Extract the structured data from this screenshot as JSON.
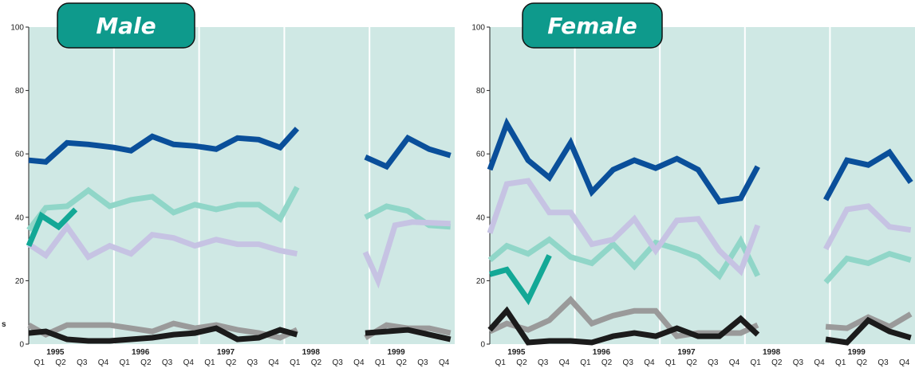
{
  "edge_label": "s",
  "colors": {
    "background": "#cfe8e4",
    "badge": "#0e9a8c",
    "separator": "#ffffff",
    "series": [
      "#0a4f9a",
      "#90d6c8",
      "#c6c3e3",
      "#13a896",
      "#9a9a9a",
      "#1b1b1b"
    ]
  },
  "chart_data": [
    {
      "type": "line",
      "title": "Male",
      "ylim": [
        0,
        100
      ],
      "yticks": [
        "0",
        "20",
        "40",
        "60",
        "80",
        "100"
      ],
      "quarters": [
        "Q1",
        "Q2",
        "Q3",
        "Q4",
        "Q1",
        "Q2",
        "Q3",
        "Q4",
        "Q1",
        "Q2",
        "Q3",
        "Q4",
        "Q1",
        "Q2",
        "Q3",
        "Q4",
        "Q1",
        "Q2",
        "Q3",
        "Q4"
      ],
      "years": [
        "1995",
        "1996",
        "1997",
        "1998",
        "1999"
      ],
      "x_start": 1995,
      "x_end": 2000,
      "grid": false,
      "series": [
        {
          "values": [
            [
              1995.0,
              58
            ],
            [
              1995.2,
              57.5
            ],
            [
              1995.45,
              63.5
            ],
            [
              1995.7,
              63
            ],
            [
              1996.0,
              62
            ],
            [
              1996.2,
              61
            ],
            [
              1996.45,
              65.5
            ],
            [
              1996.7,
              63
            ],
            [
              1996.95,
              62.5
            ],
            [
              1997.2,
              61.5
            ],
            [
              1997.45,
              65
            ],
            [
              1997.7,
              64.5
            ],
            [
              1997.95,
              62
            ],
            [
              1998.15,
              68
            ],
            null,
            [
              1998.95,
              59
            ],
            [
              1999.2,
              56
            ],
            [
              1999.45,
              65
            ],
            [
              1999.7,
              61.5
            ],
            [
              1999.95,
              59.5
            ]
          ]
        },
        {
          "values": [
            [
              1995.0,
              36
            ],
            [
              1995.2,
              43
            ],
            [
              1995.45,
              43.5
            ],
            [
              1995.7,
              48.5
            ],
            [
              1995.95,
              43.5
            ],
            [
              1996.2,
              45.5
            ],
            [
              1996.45,
              46.5
            ],
            [
              1996.7,
              41.5
            ],
            [
              1996.95,
              44
            ],
            [
              1997.2,
              42.5
            ],
            [
              1997.45,
              44
            ],
            [
              1997.7,
              44
            ],
            [
              1997.95,
              39.5
            ],
            [
              1998.15,
              49.5
            ],
            null,
            [
              1998.95,
              40
            ],
            [
              1999.2,
              43.5
            ],
            [
              1999.45,
              42
            ],
            [
              1999.7,
              37.5
            ],
            [
              1999.95,
              37
            ]
          ]
        },
        {
          "values": [
            [
              1995.0,
              31.5
            ],
            [
              1995.2,
              28
            ],
            [
              1995.45,
              37
            ],
            [
              1995.7,
              27.5
            ],
            [
              1995.95,
              31
            ],
            [
              1996.2,
              28.5
            ],
            [
              1996.45,
              34.5
            ],
            [
              1996.7,
              33.5
            ],
            [
              1996.95,
              31
            ],
            [
              1997.2,
              33
            ],
            [
              1997.45,
              31.5
            ],
            [
              1997.7,
              31.5
            ],
            [
              1997.95,
              29.5
            ],
            [
              1998.15,
              28.5
            ],
            null,
            [
              1998.95,
              29
            ],
            [
              1999.1,
              20
            ],
            [
              1999.3,
              37.5
            ],
            [
              1999.5,
              38.5
            ],
            [
              1999.95,
              38
            ]
          ]
        },
        {
          "values": [
            [
              1995.0,
              31
            ],
            [
              1995.15,
              40.5
            ],
            [
              1995.35,
              37
            ],
            [
              1995.55,
              42.5
            ]
          ]
        },
        {
          "values": [
            [
              1995.0,
              6
            ],
            [
              1995.2,
              3
            ],
            [
              1995.45,
              6
            ],
            [
              1995.7,
              6
            ],
            [
              1995.95,
              6
            ],
            [
              1996.2,
              5
            ],
            [
              1996.45,
              4
            ],
            [
              1996.7,
              6.5
            ],
            [
              1996.95,
              5
            ],
            [
              1997.2,
              6
            ],
            [
              1997.45,
              4.5
            ],
            [
              1997.7,
              3.5
            ],
            [
              1997.95,
              2
            ],
            [
              1998.15,
              4.5
            ],
            null,
            [
              1998.95,
              2
            ],
            [
              1999.2,
              6
            ],
            [
              1999.45,
              5
            ],
            [
              1999.7,
              5
            ],
            [
              1999.95,
              3.5
            ]
          ]
        },
        {
          "values": [
            [
              1995.0,
              3.5
            ],
            [
              1995.2,
              4
            ],
            [
              1995.45,
              1.5
            ],
            [
              1995.7,
              1
            ],
            [
              1995.95,
              1
            ],
            [
              1996.2,
              1.5
            ],
            [
              1996.45,
              2
            ],
            [
              1996.7,
              3
            ],
            [
              1996.95,
              3.5
            ],
            [
              1997.2,
              5
            ],
            [
              1997.45,
              1.5
            ],
            [
              1997.7,
              2
            ],
            [
              1997.95,
              4.5
            ],
            [
              1998.15,
              3
            ],
            null,
            [
              1998.95,
              3.5
            ],
            [
              1999.2,
              4
            ],
            [
              1999.45,
              4.5
            ],
            [
              1999.7,
              3
            ],
            [
              1999.95,
              1.5
            ]
          ]
        }
      ]
    },
    {
      "type": "line",
      "title": "Female",
      "ylim": [
        0,
        100
      ],
      "yticks": [
        "0",
        "20",
        "40",
        "60",
        "80",
        "100"
      ],
      "quarters": [
        "Q1",
        "Q2",
        "Q3",
        "Q4",
        "Q1",
        "Q2",
        "Q3",
        "Q4",
        "Q1",
        "Q2",
        "Q3",
        "Q4",
        "Q1",
        "Q2",
        "Q3",
        "Q4",
        "Q1",
        "Q2",
        "Q3",
        "Q4"
      ],
      "years": [
        "1995",
        "1996",
        "1997",
        "1998",
        "1999"
      ],
      "x_start": 1995,
      "x_end": 2000,
      "grid": false,
      "series": [
        {
          "values": [
            [
              1995.0,
              55
            ],
            [
              1995.2,
              69.5
            ],
            [
              1995.45,
              58
            ],
            [
              1995.7,
              52.5
            ],
            [
              1995.95,
              63.5
            ],
            [
              1996.2,
              48
            ],
            [
              1996.45,
              55
            ],
            [
              1996.7,
              58
            ],
            [
              1996.95,
              55.5
            ],
            [
              1997.2,
              58.5
            ],
            [
              1997.45,
              55
            ],
            [
              1997.7,
              45
            ],
            [
              1997.95,
              46
            ],
            [
              1998.15,
              56
            ],
            null,
            [
              1998.95,
              45.5
            ],
            [
              1999.2,
              58
            ],
            [
              1999.45,
              56.5
            ],
            [
              1999.7,
              60.5
            ],
            [
              1999.95,
              51
            ]
          ]
        },
        {
          "values": [
            [
              1995.0,
              26.5
            ],
            [
              1995.2,
              31
            ],
            [
              1995.45,
              28.5
            ],
            [
              1995.7,
              33
            ],
            [
              1995.95,
              27.5
            ],
            [
              1996.2,
              25.5
            ],
            [
              1996.45,
              31.5
            ],
            [
              1996.7,
              24.5
            ],
            [
              1996.95,
              32
            ],
            [
              1997.2,
              30
            ],
            [
              1997.45,
              27.5
            ],
            [
              1997.7,
              21.5
            ],
            [
              1997.95,
              32.5
            ],
            [
              1998.15,
              21.5
            ],
            null,
            [
              1998.95,
              19.5
            ],
            [
              1999.2,
              27
            ],
            [
              1999.45,
              25.5
            ],
            [
              1999.7,
              28.5
            ],
            [
              1999.95,
              26.5
            ]
          ]
        },
        {
          "values": [
            [
              1995.0,
              35
            ],
            [
              1995.2,
              50.5
            ],
            [
              1995.45,
              51.5
            ],
            [
              1995.7,
              41.5
            ],
            [
              1995.95,
              41.5
            ],
            [
              1996.2,
              31.5
            ],
            [
              1996.45,
              33
            ],
            [
              1996.7,
              39.5
            ],
            [
              1996.95,
              29.5
            ],
            [
              1997.2,
              39
            ],
            [
              1997.45,
              39.5
            ],
            [
              1997.7,
              29.5
            ],
            [
              1997.95,
              23
            ],
            [
              1998.15,
              37.5
            ],
            null,
            [
              1998.95,
              30
            ],
            [
              1999.2,
              42.5
            ],
            [
              1999.45,
              43.5
            ],
            [
              1999.7,
              37
            ],
            [
              1999.95,
              36
            ]
          ]
        },
        {
          "values": [
            [
              1995.0,
              22
            ],
            [
              1995.2,
              23.5
            ],
            [
              1995.45,
              14
            ],
            [
              1995.7,
              28
            ]
          ]
        },
        {
          "values": [
            [
              1995.0,
              4
            ],
            [
              1995.2,
              6.5
            ],
            [
              1995.45,
              4.5
            ],
            [
              1995.7,
              7.5
            ],
            [
              1995.95,
              14
            ],
            [
              1996.2,
              6.5
            ],
            [
              1996.45,
              9
            ],
            [
              1996.7,
              10.5
            ],
            [
              1996.95,
              10.5
            ],
            [
              1997.2,
              2.5
            ],
            [
              1997.45,
              3.5
            ],
            [
              1997.7,
              3.5
            ],
            [
              1997.95,
              3.5
            ],
            [
              1998.15,
              6
            ],
            null,
            [
              1998.95,
              5.5
            ],
            [
              1999.2,
              5
            ],
            [
              1999.45,
              8.5
            ],
            [
              1999.7,
              5.5
            ],
            [
              1999.95,
              9.5
            ]
          ]
        },
        {
          "values": [
            [
              1995.0,
              4.5
            ],
            [
              1995.2,
              10.5
            ],
            [
              1995.45,
              0.5
            ],
            [
              1995.7,
              1
            ],
            [
              1995.95,
              1
            ],
            [
              1996.2,
              0.5
            ],
            [
              1996.45,
              2.5
            ],
            [
              1996.7,
              3.5
            ],
            [
              1996.95,
              2.5
            ],
            [
              1997.2,
              5
            ],
            [
              1997.45,
              2.5
            ],
            [
              1997.7,
              2.5
            ],
            [
              1997.95,
              8
            ],
            [
              1998.15,
              3
            ],
            null,
            [
              1998.95,
              1.5
            ],
            [
              1999.2,
              0.5
            ],
            [
              1999.45,
              7.5
            ],
            [
              1999.7,
              4
            ],
            [
              1999.95,
              2
            ]
          ]
        }
      ]
    }
  ]
}
